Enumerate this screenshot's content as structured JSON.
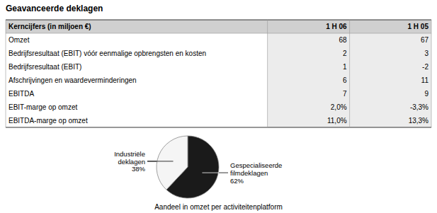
{
  "chart_data": [
    {
      "type": "table",
      "title": "Geavanceerde deklagen",
      "row_header": "Kerncijfers (in miljoen €)",
      "categories": [
        "Omzet",
        "Bedrijfsresultaat (EBIT) vóór eenmalige opbrengsten en kosten",
        "Bedrijfsresultaat (EBIT)",
        "Afschrijvingen en waardeverminderingen",
        "EBITDA",
        "EBIT-marge op omzet",
        "EBITDA-marge op omzet"
      ],
      "series": [
        {
          "name": "1 H 06",
          "values": [
            68,
            2,
            1,
            6,
            7,
            2.0,
            11.0
          ],
          "value_labels": [
            "68",
            "2",
            "1",
            "6",
            "7",
            "2,0%",
            "11,0%"
          ]
        },
        {
          "name": "1 H 05",
          "values": [
            67,
            3,
            -2,
            11,
            9,
            -3.3,
            13.3
          ],
          "value_labels": [
            "67",
            "3",
            "-2",
            "11",
            "9",
            "-3,3%",
            "13,3%"
          ]
        }
      ]
    },
    {
      "type": "pie",
      "title": "Aandeel in omzet per activiteitenplatform",
      "categories": [
        "Gespecialiseerde filmdeklagen",
        "Industriële deklagen"
      ],
      "values": [
        62,
        38
      ],
      "value_labels": [
        "62%",
        "38%"
      ],
      "colors": [
        "#1a1a1a",
        "#f5f5f5"
      ],
      "data_labels": true
    }
  ]
}
